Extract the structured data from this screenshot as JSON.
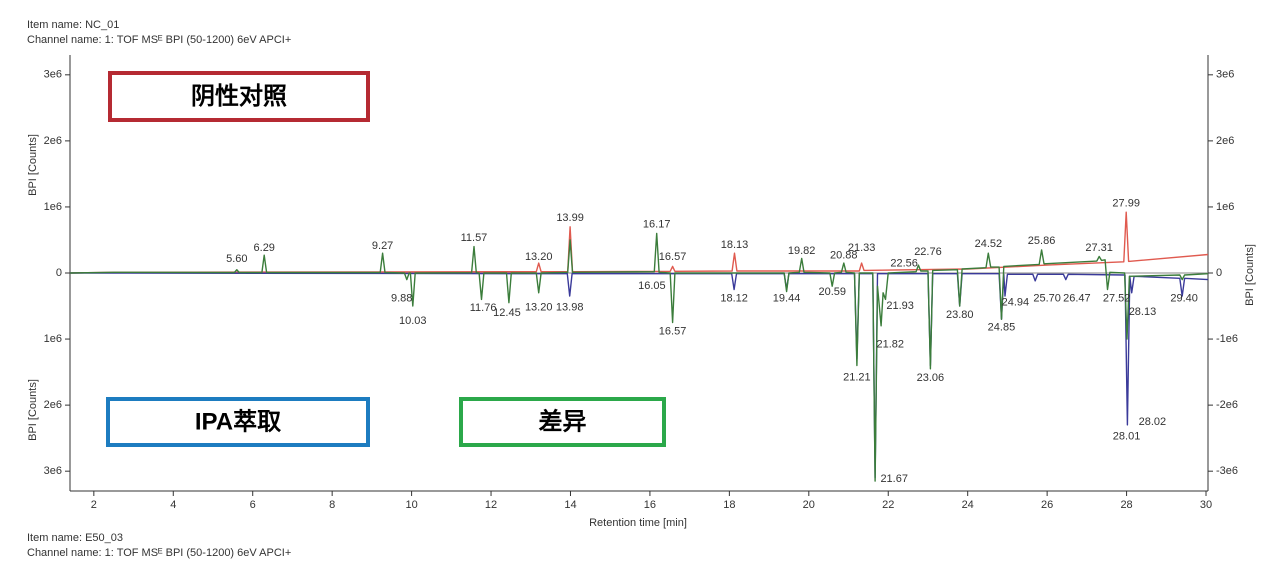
{
  "chart_data": {
    "type": "line",
    "header": [
      "Item name: NC_01",
      "Channel name: 1: TOF MSᴱ BPI (50-1200) 6eV APCI+"
    ],
    "footer": [
      "Item name: E50_03",
      "Channel name: 1: TOF MSᴱ BPI (50-1200) 6eV APCI+"
    ],
    "xlabel": "Retention time [min]",
    "ylabel": "BPI [Counts]",
    "y2label": "BPI [Counts]",
    "xlim": [
      1.4,
      30.05
    ],
    "xticks": [
      2,
      4,
      6,
      8,
      10,
      12,
      14,
      16,
      18,
      20,
      22,
      24,
      26,
      28,
      30
    ],
    "ylim": [
      -3300000,
      3300000
    ],
    "yticks": [
      {
        "value": 3000000,
        "label": "3e6"
      },
      {
        "value": 2000000,
        "label": "2e6"
      },
      {
        "value": 1000000,
        "label": "1e6"
      },
      0,
      {
        "value": -1000000,
        "label": "1e6"
      },
      {
        "value": -2000000,
        "label": "2e6"
      },
      {
        "value": -3000000,
        "label": "3e6"
      }
    ],
    "y2lim": [
      -3300000,
      3300000
    ],
    "y2ticks": [
      {
        "value": 3000000,
        "label": "3e6"
      },
      {
        "value": 2000000,
        "label": "2e6"
      },
      {
        "value": 1000000,
        "label": "1e6"
      },
      0,
      {
        "value": -1000000,
        "label": "-1e6"
      },
      {
        "value": -2000000,
        "label": "-2e6"
      },
      {
        "value": -3000000,
        "label": "-3e6"
      }
    ],
    "series": [
      {
        "name": "阴性对照",
        "color": "#e05a4f",
        "box_color": "#b52a32",
        "x": [
          1.4,
          2.5,
          13.14,
          13.2,
          13.26,
          13.93,
          13.99,
          14.05,
          16.51,
          16.57,
          16.63,
          18.07,
          18.13,
          18.19,
          21.27,
          21.33,
          21.39,
          24,
          26,
          27.93,
          27.99,
          28.05,
          30.05
        ],
        "values": [
          0,
          10000,
          20000,
          150000,
          20000,
          20000,
          700000,
          20000,
          25000,
          100000,
          25000,
          30000,
          300000,
          30000,
          30000,
          150000,
          40000,
          60000,
          120000,
          170000,
          920000,
          175000,
          280000
        ]
      },
      {
        "name": "IPA萃取",
        "color": "#3a3a9a",
        "box_color": "#1d7cc0",
        "x": [
          1.4,
          13.92,
          13.98,
          14.04,
          18.06,
          18.12,
          18.18,
          19.38,
          19.44,
          19.5,
          21.15,
          21.21,
          21.27,
          21.61,
          21.67,
          21.73,
          23,
          23.06,
          23.12,
          23.74,
          23.8,
          23.86,
          24.79,
          24.85,
          24.91,
          24.94,
          25.0,
          25.64,
          25.7,
          25.76,
          26.41,
          26.47,
          26.53,
          27.96,
          28.02,
          28.08,
          28.13,
          28.19,
          29.34,
          29.4,
          29.46,
          30.05
        ],
        "values": [
          0,
          -10000,
          -350000,
          -10000,
          -10000,
          -250000,
          -10000,
          -10000,
          -250000,
          -10000,
          -10000,
          -1300000,
          -10000,
          -10000,
          -3100000,
          -10000,
          -10000,
          -1400000,
          -10000,
          -10000,
          -500000,
          -10000,
          -10000,
          -700000,
          -20000,
          -350000,
          -20000,
          -20000,
          -120000,
          -20000,
          -20000,
          -100000,
          -20000,
          -30000,
          -2300000,
          -50000,
          -300000,
          -50000,
          -80000,
          -350000,
          -80000,
          -100000
        ]
      },
      {
        "name": "差异",
        "color": "#3b7d3b",
        "box_color": "#2ba84a",
        "x": [
          1.4,
          2.5,
          5.54,
          5.6,
          5.66,
          6.23,
          6.29,
          6.35,
          9.21,
          9.27,
          9.33,
          9.82,
          9.88,
          9.94,
          9.97,
          10.03,
          10.09,
          11.51,
          11.57,
          11.63,
          11.7,
          11.76,
          11.82,
          12.39,
          12.45,
          12.51,
          13.14,
          13.2,
          13.26,
          13.93,
          13.99,
          14.05,
          16.11,
          16.17,
          16.23,
          16.51,
          16.57,
          16.63,
          19.38,
          19.44,
          19.5,
          19.76,
          19.82,
          19.88,
          20.53,
          20.59,
          20.65,
          20.82,
          20.88,
          20.94,
          21.15,
          21.21,
          21.27,
          21.61,
          21.67,
          21.73,
          21.82,
          21.87,
          21.93,
          22.0,
          22.7,
          22.76,
          22.82,
          23.0,
          23.06,
          23.12,
          23.74,
          23.8,
          23.86,
          24.46,
          24.52,
          24.58,
          24.79,
          24.85,
          24.91,
          25.8,
          25.86,
          25.92,
          27.25,
          27.31,
          27.37,
          27.46,
          27.52,
          27.58,
          27.95,
          28.01,
          28.07,
          29.34,
          29.4,
          29.46,
          30.05
        ],
        "values": [
          0,
          10000,
          8000,
          50000,
          8000,
          8000,
          270000,
          8000,
          8000,
          300000,
          8000,
          0,
          -100000,
          0,
          0,
          -500000,
          0,
          5000,
          400000,
          5000,
          0,
          -400000,
          0,
          0,
          -450000,
          0,
          0,
          -300000,
          0,
          10000,
          500000,
          10000,
          20000,
          600000,
          10000,
          0,
          -750000,
          0,
          0,
          -280000,
          0,
          10000,
          220000,
          10000,
          0,
          -200000,
          0,
          10000,
          150000,
          10000,
          0,
          -1400000,
          0,
          0,
          -3150000,
          -200000,
          -800000,
          -300000,
          -400000,
          0,
          20000,
          120000,
          30000,
          30000,
          -1450000,
          40000,
          50000,
          -500000,
          60000,
          80000,
          300000,
          90000,
          90000,
          -700000,
          100000,
          130000,
          350000,
          140000,
          180000,
          250000,
          190000,
          200000,
          -250000,
          10000,
          0,
          -1000000,
          -50000,
          -30000,
          -100000,
          -30000,
          -10000
        ]
      }
    ],
    "annotations": [
      {
        "label": "5.60",
        "x": 5.6,
        "y": 210000
      },
      {
        "label": "6.29",
        "x": 6.29,
        "y": 380000
      },
      {
        "label": "9.27",
        "x": 9.27,
        "y": 410000
      },
      {
        "label": "11.57",
        "x": 11.57,
        "y": 530000
      },
      {
        "label": "13.20",
        "x": 13.2,
        "y": 240000
      },
      {
        "label": "13.99",
        "x": 13.99,
        "y": 830000
      },
      {
        "label": "16.17",
        "x": 16.17,
        "y": 730000
      },
      {
        "label": "16.57",
        "x": 16.57,
        "y": 240000
      },
      {
        "label": "18.13",
        "x": 18.13,
        "y": 420000
      },
      {
        "label": "19.82",
        "x": 19.82,
        "y": 330000
      },
      {
        "label": "20.88",
        "x": 20.88,
        "y": 260000
      },
      {
        "label": "21.33",
        "x": 21.33,
        "y": 380000
      },
      {
        "label": "22.56",
        "x": 22.4,
        "y": 140000
      },
      {
        "label": "22.76",
        "x": 23.0,
        "y": 320000
      },
      {
        "label": "24.52",
        "x": 24.52,
        "y": 440000
      },
      {
        "label": "25.86",
        "x": 25.86,
        "y": 480000
      },
      {
        "label": "27.31",
        "x": 27.31,
        "y": 380000
      },
      {
        "label": "27.99",
        "x": 27.99,
        "y": 1050000
      },
      {
        "label": "9.88",
        "x": 9.75,
        "y": -390000
      },
      {
        "label": "10.03",
        "x": 10.03,
        "y": -730000
      },
      {
        "label": "11.76",
        "x": 11.8,
        "y": -530000
      },
      {
        "label": "12.45",
        "x": 12.4,
        "y": -610000
      },
      {
        "label": "13.20",
        "x": 13.2,
        "y": -520000
      },
      {
        "label": "13.98",
        "x": 13.98,
        "y": -520000
      },
      {
        "label": "16.05",
        "x": 16.05,
        "y": -200000
      },
      {
        "label": "16.57",
        "x": 16.57,
        "y": -890000
      },
      {
        "label": "18.12",
        "x": 18.12,
        "y": -390000
      },
      {
        "label": "19.44",
        "x": 19.44,
        "y": -390000
      },
      {
        "label": "20.59",
        "x": 20.59,
        "y": -290000
      },
      {
        "label": "21.21",
        "x": 21.21,
        "y": -1580000
      },
      {
        "label": "21.67",
        "x": 22.15,
        "y": -3120000
      },
      {
        "label": "21.82",
        "x": 22.05,
        "y": -1080000
      },
      {
        "label": "21.93",
        "x": 22.3,
        "y": -500000
      },
      {
        "label": "23.06",
        "x": 23.06,
        "y": -1590000
      },
      {
        "label": "23.80",
        "x": 23.8,
        "y": -640000
      },
      {
        "label": "24.85",
        "x": 24.85,
        "y": -830000
      },
      {
        "label": "24.94",
        "x": 25.2,
        "y": -450000
      },
      {
        "label": "25.70",
        "x": 26.0,
        "y": -390000
      },
      {
        "label": "26.47",
        "x": 26.75,
        "y": -390000
      },
      {
        "label": "27.52",
        "x": 27.75,
        "y": -390000
      },
      {
        "label": "28.13",
        "x": 28.4,
        "y": -590000
      },
      {
        "label": "28.01",
        "x": 28.0,
        "y": -2480000
      },
      {
        "label": "28.02",
        "x": 28.65,
        "y": -2260000
      },
      {
        "label": "29.40",
        "x": 29.45,
        "y": -390000
      }
    ]
  }
}
